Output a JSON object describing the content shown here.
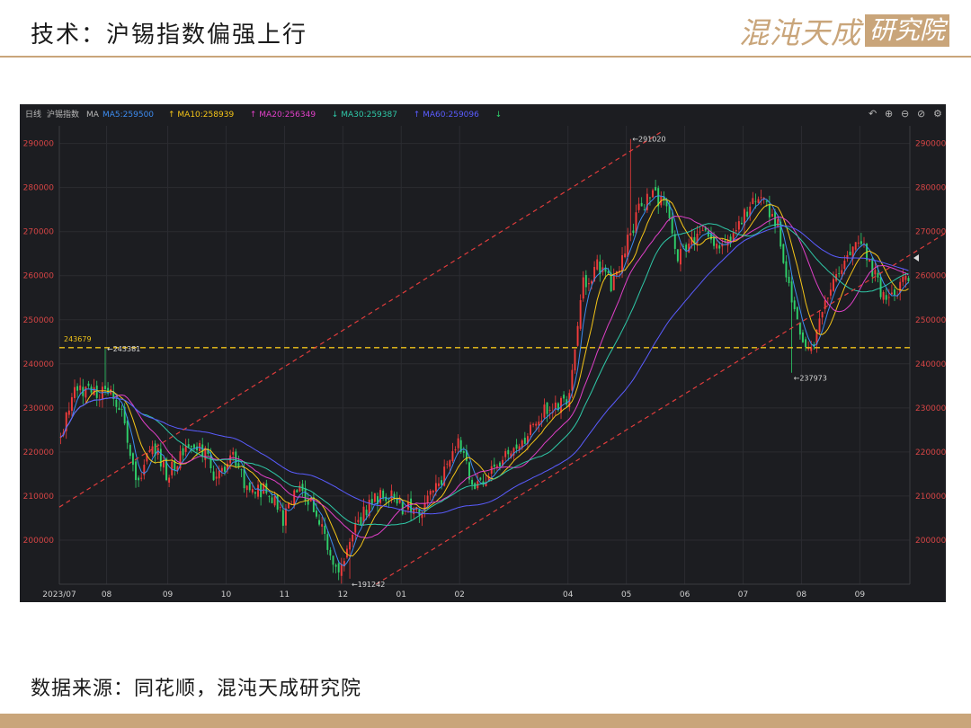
{
  "page": {
    "title": "技术：沪锡指数偏强上行",
    "source": "数据来源：同花顺，混沌天成研究院",
    "brand_name": "混沌天成",
    "brand_box": "研究院"
  },
  "legend": {
    "period": "日线",
    "symbol": "沪锡指数",
    "ma_label": "MA",
    "items": [
      {
        "text": "MA5:259500",
        "arrow": "",
        "color": "#3d8cf0"
      },
      {
        "text": "MA10:258939",
        "arrow": "↑",
        "color": "#f5c518"
      },
      {
        "text": "MA20:256349",
        "arrow": "↑",
        "color": "#e040c8"
      },
      {
        "text": "MA30:259387",
        "arrow": "↓",
        "color": "#2fc9a8"
      },
      {
        "text": "MA60:259096",
        "arrow": "↑",
        "color": "#5a5cff"
      }
    ],
    "trailing_arrow": "↓"
  },
  "toolbar": {
    "undo_label": "↶",
    "zoom_in_label": "⊕",
    "zoom_out_label": "⊖",
    "reset_label": "⊘",
    "settings_label": "⚙"
  },
  "colors": {
    "up": "#f03b3b",
    "down": "#2fcf6a",
    "axis_text": "#d64545",
    "grid": "#2b2c31",
    "trend": "#e03c3c",
    "support": "#f0c419",
    "panel_bg": "#1c1d21"
  },
  "chart_data": {
    "type": "candlestick",
    "ylim": [
      190000,
      294000
    ],
    "y_ticks": [
      "200000",
      "210000",
      "220000",
      "230000",
      "240000",
      "250000",
      "260000",
      "270000",
      "280000",
      "290000"
    ],
    "x_tick_labels": [
      "2023/07",
      "08",
      "09",
      "10",
      "11",
      "12",
      "01",
      "02",
      "04",
      "05",
      "06",
      "07",
      "08",
      "09"
    ],
    "x_tick_index": [
      0,
      17,
      39,
      60,
      81,
      102,
      123,
      144,
      183,
      204,
      225,
      246,
      267,
      288
    ],
    "bars_total": 306,
    "anchors": [
      [
        0,
        223000
      ],
      [
        5,
        234000
      ],
      [
        12,
        234000
      ],
      [
        18,
        233000
      ],
      [
        22,
        228000
      ],
      [
        28,
        212000
      ],
      [
        33,
        222000
      ],
      [
        38,
        215000
      ],
      [
        44,
        220000
      ],
      [
        50,
        222000
      ],
      [
        56,
        214000
      ],
      [
        62,
        220000
      ],
      [
        68,
        210000
      ],
      [
        74,
        212000
      ],
      [
        80,
        205000
      ],
      [
        86,
        212000
      ],
      [
        92,
        207000
      ],
      [
        96,
        198000
      ],
      [
        100,
        194000
      ],
      [
        104,
        200000
      ],
      [
        110,
        207000
      ],
      [
        116,
        211000
      ],
      [
        122,
        208000
      ],
      [
        128,
        206000
      ],
      [
        133,
        210000
      ],
      [
        138,
        215000
      ],
      [
        143,
        222000
      ],
      [
        149,
        212000
      ],
      [
        154,
        214000
      ],
      [
        160,
        220000
      ],
      [
        166,
        222000
      ],
      [
        172,
        228000
      ],
      [
        178,
        231000
      ],
      [
        183,
        232000
      ],
      [
        188,
        258000
      ],
      [
        193,
        262000
      ],
      [
        198,
        258000
      ],
      [
        203,
        266000
      ],
      [
        208,
        275000
      ],
      [
        213,
        279000
      ],
      [
        218,
        275000
      ],
      [
        222,
        264000
      ],
      [
        226,
        268000
      ],
      [
        231,
        270000
      ],
      [
        237,
        267000
      ],
      [
        242,
        269000
      ],
      [
        247,
        275000
      ],
      [
        252,
        278000
      ],
      [
        258,
        272000
      ],
      [
        262,
        257000
      ],
      [
        266,
        246000
      ],
      [
        270,
        242000
      ],
      [
        274,
        252000
      ],
      [
        278,
        258000
      ],
      [
        283,
        265000
      ],
      [
        288,
        268000
      ],
      [
        293,
        260000
      ],
      [
        297,
        253000
      ],
      [
        301,
        257000
      ],
      [
        304,
        260000
      ],
      [
        306,
        259000
      ]
    ],
    "annotations": [
      {
        "text": "291020",
        "index": 205,
        "value": 291020
      },
      {
        "text": "243381",
        "index": 16,
        "value": 243381
      },
      {
        "text": "237973",
        "index": 263,
        "value": 237973
      },
      {
        "text": "191242",
        "index": 104,
        "value": 191242
      }
    ],
    "support_line": {
      "label": "243679",
      "value": 243679
    },
    "trend_lines": [
      {
        "from": [
          0,
          207500
        ],
        "to": [
          217,
          292800
        ]
      },
      {
        "from": [
          114,
          190000
        ],
        "to": [
          330,
          274000
        ]
      }
    ],
    "ma_periods": [
      5,
      10,
      20,
      30,
      60
    ]
  }
}
